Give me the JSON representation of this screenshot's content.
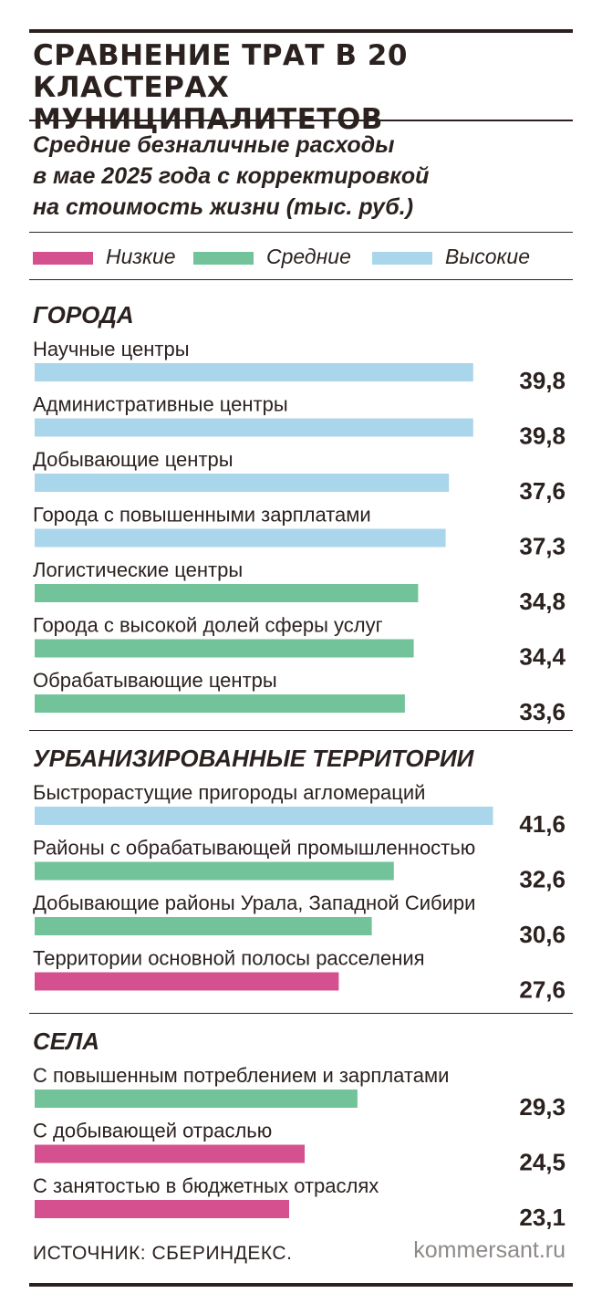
{
  "title": "СРАВНЕНИЕ ТРАТ В 20 КЛАСТЕРАХ\nМУНИЦИПАЛИТЕТОВ",
  "subtitle": "Средние безналичные расходы\nв мае 2025 года с корректировкой\nна стоимость жизни (тыс. руб.)",
  "legend": [
    {
      "label": "Низкие",
      "color": "#d4508f"
    },
    {
      "label": "Средние",
      "color": "#72c29a"
    },
    {
      "label": "Высокие",
      "color": "#a9d6ea"
    }
  ],
  "footer": {
    "source": "ИСТОЧНИК: СБЕРИНДЕКС.",
    "site": "kommersant.ru"
  },
  "chart_data": {
    "type": "bar",
    "orientation": "horizontal",
    "value_format": "decimal-comma",
    "groups": [
      {
        "name": "ГОРОДА",
        "items": [
          {
            "label": "Научные центры",
            "value": 39.8,
            "level": "Высокие"
          },
          {
            "label": "Административные центры",
            "value": 39.8,
            "level": "Высокие"
          },
          {
            "label": "Добывающие центры",
            "value": 37.6,
            "level": "Высокие"
          },
          {
            "label": "Города с повышенными зарплатами",
            "value": 37.3,
            "level": "Высокие"
          },
          {
            "label": "Логистические центры",
            "value": 34.8,
            "level": "Средние"
          },
          {
            "label": "Города с высокой долей сферы услуг",
            "value": 34.4,
            "level": "Средние"
          },
          {
            "label": "Обрабатывающие центры",
            "value": 33.6,
            "level": "Средние"
          }
        ]
      },
      {
        "name": "УРБАНИЗИРОВАННЫЕ ТЕРРИТОРИИ",
        "items": [
          {
            "label": "Быстрорастущие пригороды агломераций",
            "value": 41.6,
            "level": "Высокие"
          },
          {
            "label": "Районы с обрабатывающей промышленностью",
            "value": 32.6,
            "level": "Средние"
          },
          {
            "label": "Добывающие районы Урала, Западной Сибири",
            "value": 30.6,
            "level": "Средние"
          },
          {
            "label": "Территории основной полосы расселения",
            "value": 27.6,
            "level": "Низкие"
          }
        ]
      },
      {
        "name": "СЕЛА",
        "items": [
          {
            "label": "С повышенным потреблением и зарплатами",
            "value": 29.3,
            "level": "Средние"
          },
          {
            "label": "С добывающей отраслью",
            "value": 24.5,
            "level": "Низкие"
          },
          {
            "label": "С занятостью в бюджетных отраслях",
            "value": 23.1,
            "level": "Низкие"
          }
        ]
      }
    ]
  }
}
